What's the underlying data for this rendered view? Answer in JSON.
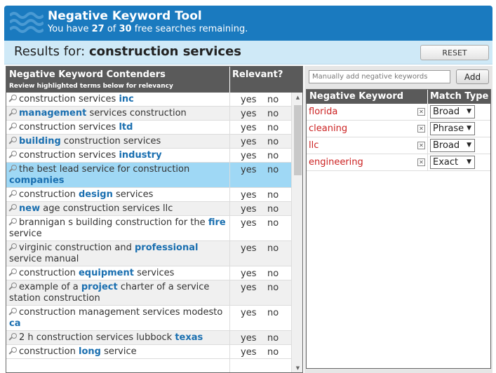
{
  "header": {
    "title": "Negative Keyword Tool",
    "sub_prefix": "You have",
    "used": "27",
    "sub_of": "of",
    "total": "30",
    "sub_suffix": "free searches remaining."
  },
  "results": {
    "label": "Results for:",
    "query": "construction services",
    "reset_label": "RESET"
  },
  "left_panel": {
    "col1_title": "Negative Keyword Contenders",
    "col1_subtitle": "Review highlighted terms below for relevancy",
    "col2_title": "Relevant?",
    "yes_label": "yes",
    "no_label": "no",
    "rows": [
      {
        "parts": [
          [
            "construction services ",
            false
          ],
          [
            "inc",
            true
          ]
        ]
      },
      {
        "parts": [
          [
            "management",
            true
          ],
          [
            " services construction",
            false
          ]
        ]
      },
      {
        "parts": [
          [
            "construction services ",
            false
          ],
          [
            "ltd",
            true
          ]
        ]
      },
      {
        "parts": [
          [
            "building",
            true
          ],
          [
            " construction services",
            false
          ]
        ]
      },
      {
        "parts": [
          [
            "construction services ",
            false
          ],
          [
            "industry",
            true
          ]
        ]
      },
      {
        "parts": [
          [
            "the best lead service for construction ",
            false
          ],
          [
            "companies",
            true
          ]
        ],
        "selected": true
      },
      {
        "parts": [
          [
            "construction ",
            false
          ],
          [
            "design",
            true
          ],
          [
            " services",
            false
          ]
        ]
      },
      {
        "parts": [
          [
            "new",
            true
          ],
          [
            " age construction services llc",
            false
          ]
        ]
      },
      {
        "parts": [
          [
            "brannigan s building construction for the ",
            false
          ],
          [
            "fire",
            true
          ],
          [
            " service",
            false
          ]
        ]
      },
      {
        "parts": [
          [
            "virginic construction and ",
            false
          ],
          [
            "professional",
            true
          ],
          [
            " service manual",
            false
          ]
        ]
      },
      {
        "parts": [
          [
            "construction ",
            false
          ],
          [
            "equipment",
            true
          ],
          [
            " services",
            false
          ]
        ]
      },
      {
        "parts": [
          [
            "example of a ",
            false
          ],
          [
            "project",
            true
          ],
          [
            " charter of a service station construction",
            false
          ]
        ]
      },
      {
        "parts": [
          [
            "construction management services modesto ",
            false
          ],
          [
            "ca",
            true
          ]
        ]
      },
      {
        "parts": [
          [
            "2 h construction services lubbock ",
            false
          ],
          [
            "texas",
            true
          ]
        ]
      },
      {
        "parts": [
          [
            "construction ",
            false
          ],
          [
            "long",
            true
          ],
          [
            " service",
            false
          ]
        ]
      }
    ]
  },
  "right_panel": {
    "manual_placeholder": "Manually add negative keywords",
    "add_label": "Add",
    "col1_title": "Negative Keyword",
    "col2_title": "Match Type",
    "remove_glyph": "✕",
    "items": [
      {
        "term": "florida",
        "match": "Broad"
      },
      {
        "term": "cleaning",
        "match": "Phrase"
      },
      {
        "term": "llc",
        "match": "Broad"
      },
      {
        "term": "engineering",
        "match": "Exact"
      }
    ]
  },
  "colors": {
    "header_bg": "#1a7abf",
    "results_bg": "#cfe9f7",
    "highlight_text": "#1a6fb0",
    "selected_row": "#9fd8f5",
    "negative_term": "#cc2222"
  },
  "icons": [
    "waves-logo-icon",
    "magnifier-icon",
    "remove-x-icon",
    "dropdown-arrow-icon",
    "scroll-up-icon",
    "scroll-down-icon"
  ]
}
